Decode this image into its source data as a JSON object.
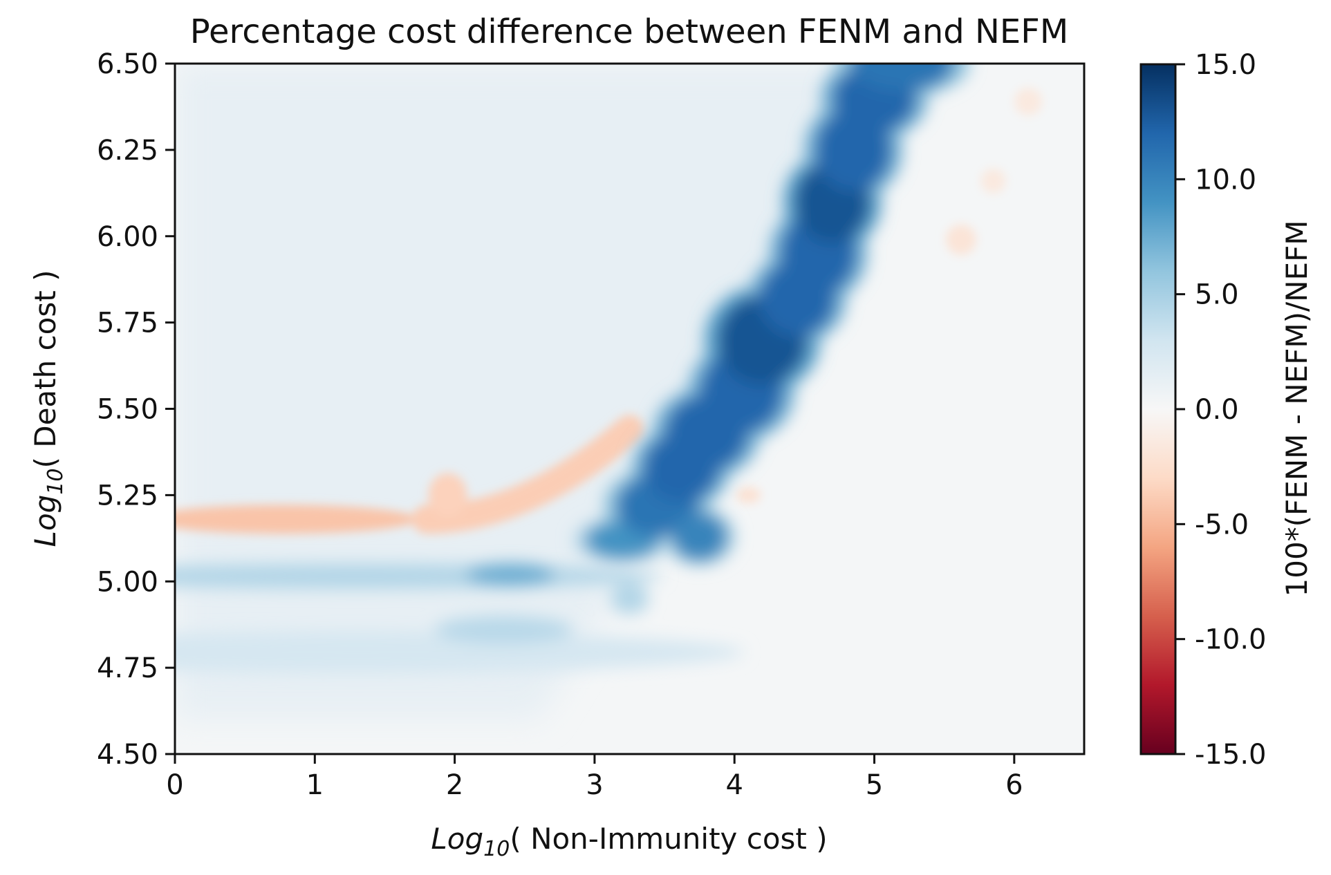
{
  "chart_data": {
    "type": "heatmap",
    "title": "Percentage cost difference between FENM and NEFM",
    "xlabel": {
      "prefix": "Log",
      "subscript": "10",
      "rest": "( Non-Immunity cost )"
    },
    "ylabel": {
      "prefix": "Log",
      "subscript": "10",
      "rest": "( Death cost )"
    },
    "xlim": [
      0,
      6.5
    ],
    "ylim": [
      4.5,
      6.5
    ],
    "xticks": [
      0,
      1,
      2,
      3,
      4,
      5,
      6
    ],
    "xtick_labels": [
      "0",
      "1",
      "2",
      "3",
      "4",
      "5",
      "6"
    ],
    "yticks": [
      4.5,
      4.75,
      5.0,
      5.25,
      5.5,
      5.75,
      6.0,
      6.25,
      6.5
    ],
    "ytick_labels": [
      "4.50",
      "4.75",
      "5.00",
      "5.25",
      "5.50",
      "5.75",
      "6.00",
      "6.25",
      "6.50"
    ],
    "colorbar": {
      "label": "100*(FENM - NEFM)/NEFM",
      "colormap": "RdBu",
      "vmin": -15,
      "vmax": 15,
      "ticks": [
        15,
        10,
        5,
        0,
        -5,
        -10,
        -15
      ],
      "tick_labels": [
        "15.0",
        "10.0",
        "5.0",
        "0.0",
        "-5.0",
        "-10.0",
        "-15.0"
      ]
    },
    "background_value": 0.2,
    "features": [
      {
        "name": "negative band left",
        "x": [
          0.0,
          1.55
        ],
        "y": [
          5.15,
          5.22
        ],
        "value": -4.0
      },
      {
        "name": "negative curve",
        "x": [
          1.7,
          3.3
        ],
        "y": [
          5.15,
          5.45
        ],
        "value": -3.5
      },
      {
        "name": "positive strip 5.00",
        "x": [
          0.0,
          2.6
        ],
        "y": [
          4.99,
          5.04
        ],
        "value": 4.5
      },
      {
        "name": "positive strip 4.80",
        "x": [
          0.0,
          2.9
        ],
        "y": [
          4.75,
          4.85
        ],
        "value": 2.5
      },
      {
        "name": "positive diagonal ridge",
        "x": [
          3.0,
          5.4
        ],
        "y": [
          5.1,
          6.5
        ],
        "value": 13.0
      },
      {
        "name": "negative spots right",
        "x": [
          5.6,
          6.2
        ],
        "y": [
          6.0,
          6.4
        ],
        "value": -2.0
      }
    ]
  }
}
